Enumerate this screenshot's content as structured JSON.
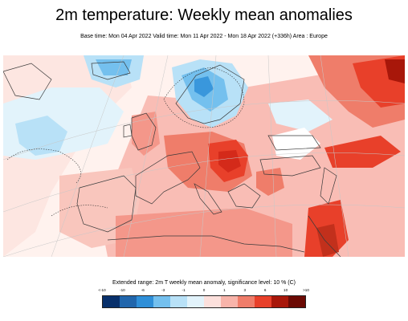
{
  "title": "2m temperature: Weekly mean anomalies",
  "subtitle": "Base time: Mon 04 Apr 2022 Valid time: Mon 11 Apr 2022 - Mon 18 Apr 2022 (+336h) Area : Europe",
  "legend": {
    "caption": "Extended range: 2m T weekly mean anomaly, significance level: 10 % (C)",
    "ticks": [
      "<-10",
      "-10",
      "-6",
      "-3",
      "-1",
      "0",
      "1",
      "3",
      "6",
      "10",
      ">10"
    ],
    "colors": [
      "#08306b",
      "#2166ac",
      "#2f8fd8",
      "#74c0ee",
      "#b8e1f7",
      "#e2f3fb",
      "#fce0dc",
      "#f8b4aa",
      "#ef7d6a",
      "#e8402a",
      "#a8170a",
      "#6b0a04"
    ]
  },
  "map": {
    "region": "Europe",
    "ocean_color": "#ffffff",
    "coast_color": "#3a3a3a",
    "grid_color": "#c8c8c8"
  }
}
